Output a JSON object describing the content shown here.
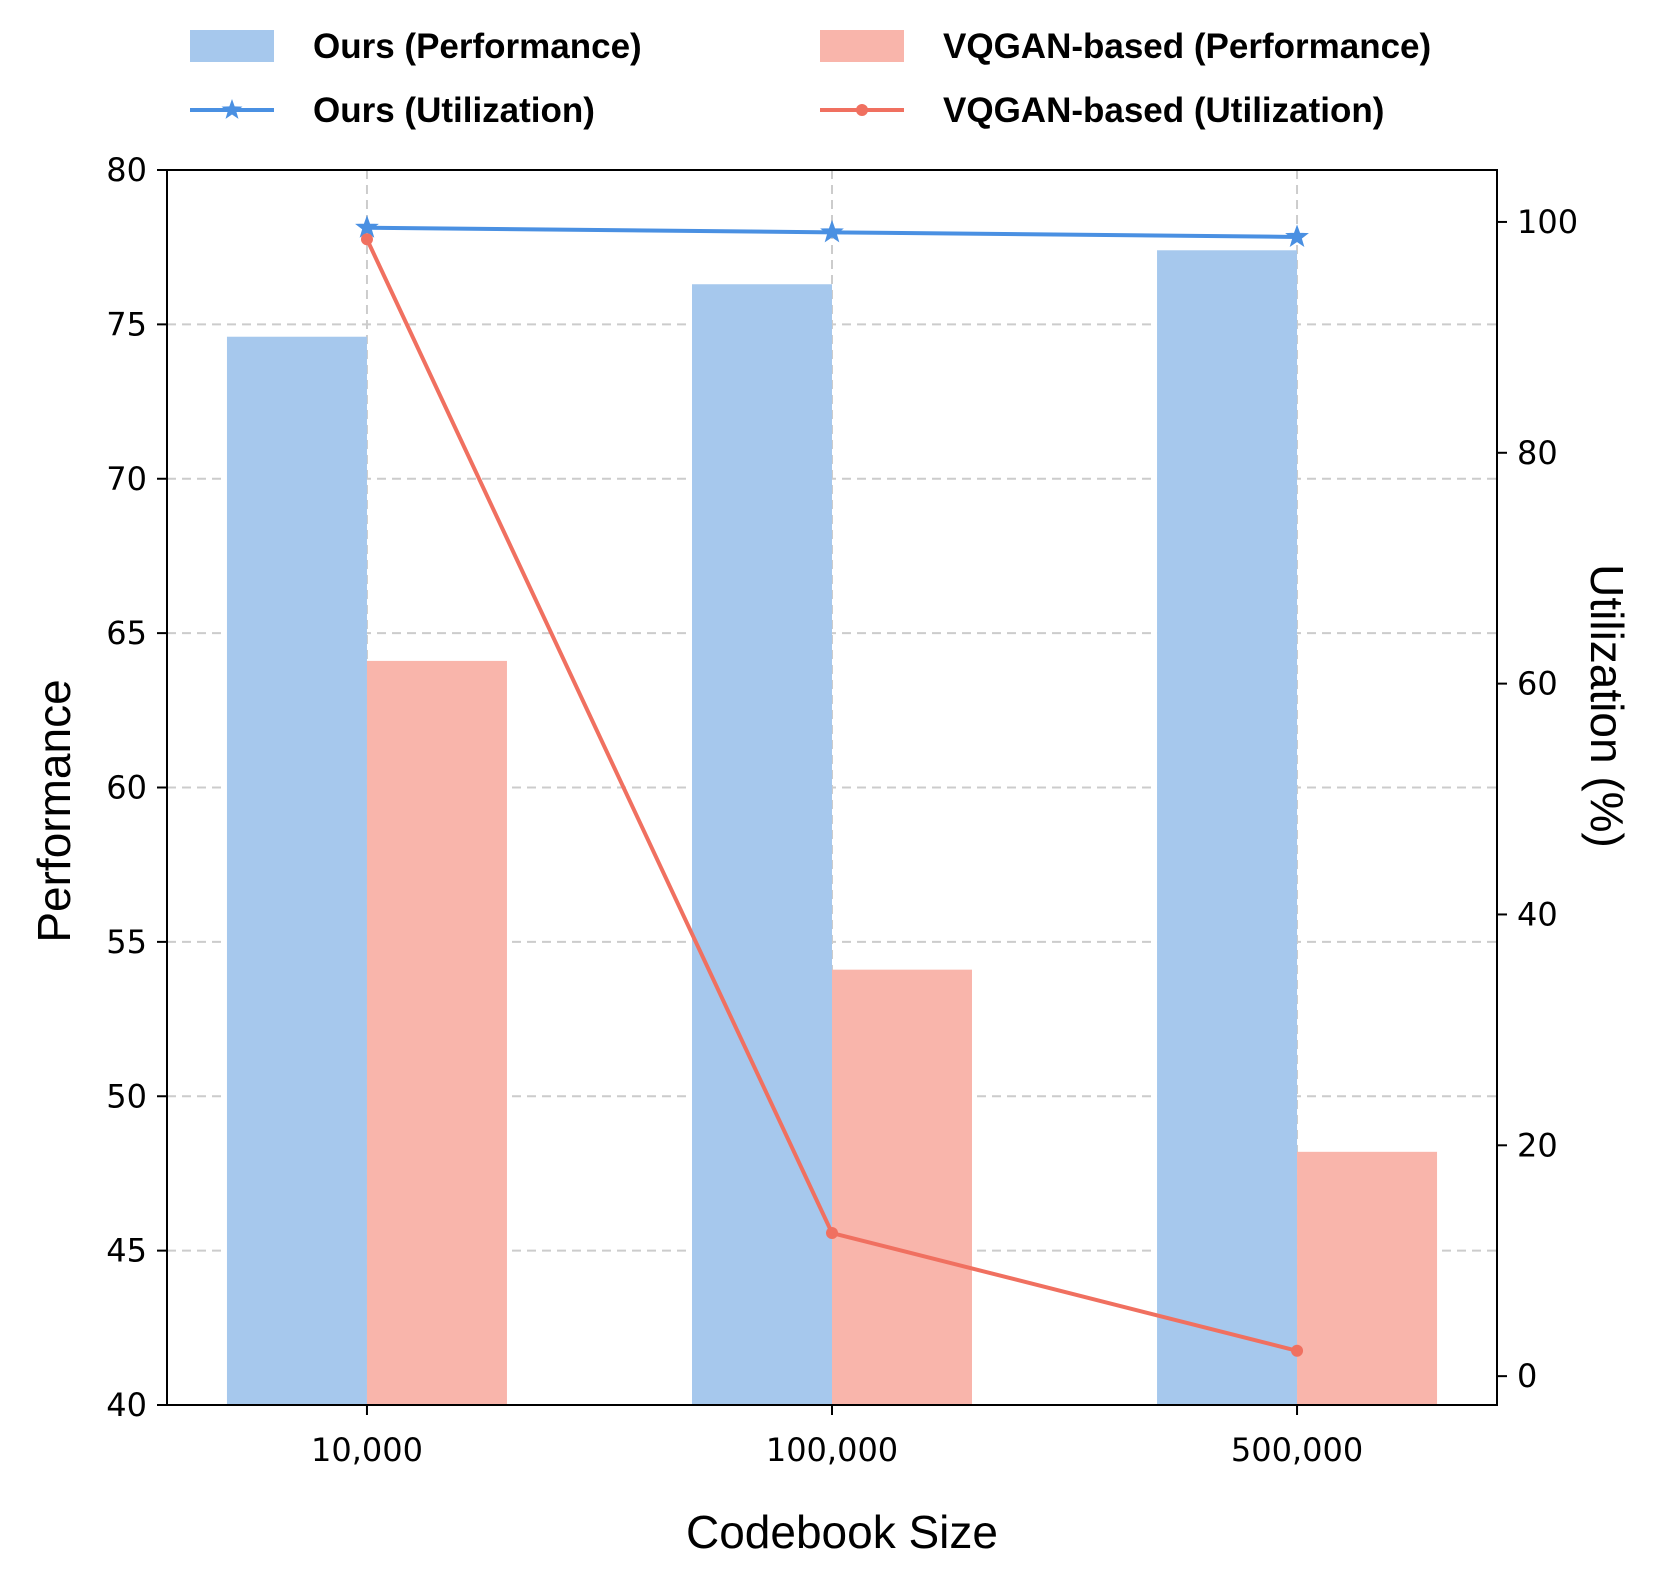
{
  "chart_data": {
    "type": "bar",
    "categories": [
      "10,000",
      "100,000",
      "500,000"
    ],
    "xlabel": "Codebook Size",
    "ylabel": "Performance",
    "y2label": "Utilization (%)",
    "ylim": [
      40,
      80
    ],
    "y2lim": [
      -2.5,
      104.5
    ],
    "yticks": [
      40,
      45,
      50,
      55,
      60,
      65,
      70,
      75,
      80
    ],
    "y2ticks": [
      0,
      20,
      40,
      60,
      80,
      100
    ],
    "grid": true,
    "bar_series": [
      {
        "name": "Ours (Performance)",
        "values": [
          74.6,
          76.3,
          77.4
        ],
        "color": "#a6c8ed"
      },
      {
        "name": "VQGAN-based (Performance)",
        "values": [
          64.1,
          54.1,
          48.2
        ],
        "color": "#f9b5ab"
      }
    ],
    "line_series": [
      {
        "name": "Ours (Utilization)",
        "values": [
          99.5,
          99.1,
          98.7
        ],
        "color": "#4a90e2",
        "marker": "star",
        "axis": "right"
      },
      {
        "name": "VQGAN-based (Utilization)",
        "values": [
          98.5,
          12.4,
          2.2
        ],
        "color": "#f07060",
        "marker": "circle",
        "axis": "right"
      }
    ],
    "legend": {
      "placement": "top",
      "entries": [
        {
          "label": "Ours (Performance)",
          "kind": "bar",
          "color": "#a6c8ed"
        },
        {
          "label": "VQGAN-based (Performance)",
          "kind": "bar",
          "color": "#f9b5ab"
        },
        {
          "label": "Ours (Utilization)",
          "kind": "line-star",
          "color": "#4a90e2"
        },
        {
          "label": "VQGAN-based (Utilization)",
          "kind": "line-circle",
          "color": "#f07060"
        }
      ]
    }
  }
}
